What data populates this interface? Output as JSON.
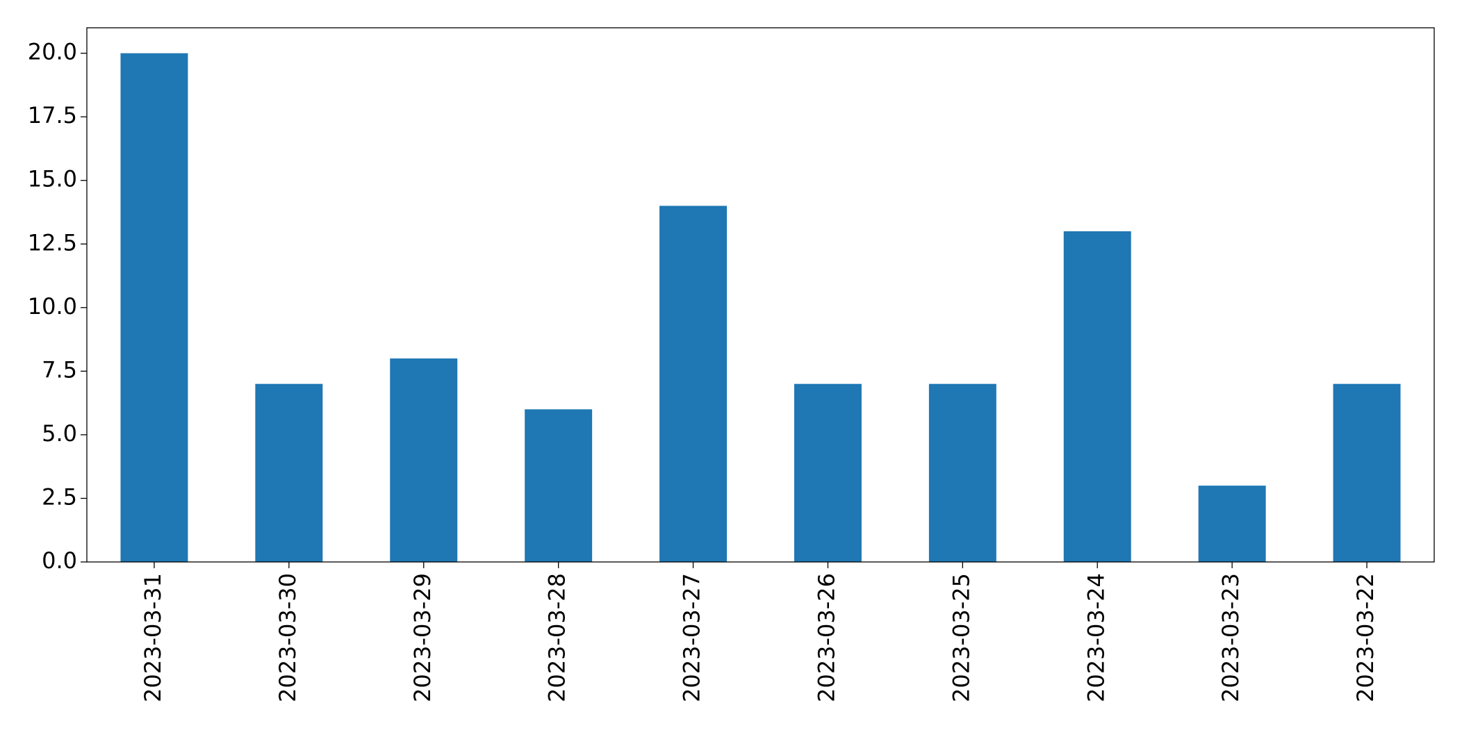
{
  "chart_data": {
    "type": "bar",
    "categories": [
      "2023-03-31",
      "2023-03-30",
      "2023-03-29",
      "2023-03-28",
      "2023-03-27",
      "2023-03-26",
      "2023-03-25",
      "2023-03-24",
      "2023-03-23",
      "2023-03-22"
    ],
    "values": [
      20,
      7,
      8,
      6,
      14,
      7,
      7,
      13,
      3,
      7
    ],
    "color": "#1f77b4",
    "ylim": [
      0,
      21
    ],
    "yticks": [
      {
        "value": 0,
        "label": "0.0"
      },
      2.5,
      {
        "value": 5,
        "label": "5.0"
      },
      7.5,
      {
        "value": 10,
        "label": "10.0"
      },
      12.5,
      {
        "value": 15,
        "label": "15.0"
      },
      17.5,
      {
        "value": 20,
        "label": "20.0"
      }
    ],
    "grid": false
  }
}
